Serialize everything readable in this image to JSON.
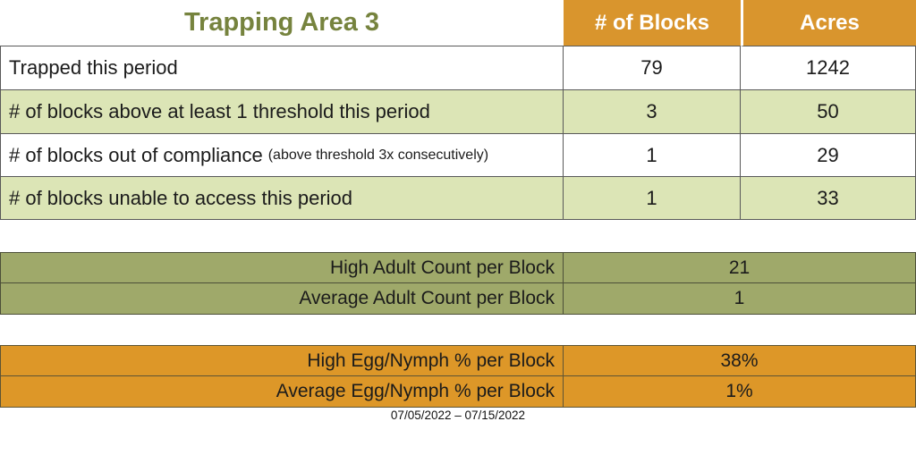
{
  "title": "Trapping Area 3",
  "date_range": "07/05/2022 – 07/15/2022",
  "colors": {
    "title_green": "#76833E",
    "header_orange": "#D9952D",
    "row_light_green": "#DCE5B6",
    "adult_table_olive": "#9FA96A",
    "egg_table_orange": "#DD9728",
    "border_dark": "#595959"
  },
  "summary_table": {
    "headers": [
      "# of Blocks",
      "Acres"
    ],
    "rows": [
      {
        "label": "Trapped this period",
        "note": "",
        "blocks": "79",
        "acres": "1242"
      },
      {
        "label": "# of blocks above at least 1 threshold this period",
        "note": "",
        "blocks": "3",
        "acres": "50"
      },
      {
        "label": "# of blocks out of compliance",
        "note": "(above threshold 3x consecutively)",
        "blocks": "1",
        "acres": "29"
      },
      {
        "label": "# of blocks unable to access this period",
        "note": "",
        "blocks": "1",
        "acres": "33"
      }
    ]
  },
  "adult_table": {
    "rows": [
      {
        "label": "High Adult Count per Block",
        "value": "21"
      },
      {
        "label": "Average Adult Count per Block",
        "value": "1"
      }
    ]
  },
  "egg_table": {
    "rows": [
      {
        "label": "High Egg/Nymph % per Block",
        "value": "38%"
      },
      {
        "label": "Average Egg/Nymph % per Block",
        "value": "1%"
      }
    ]
  }
}
